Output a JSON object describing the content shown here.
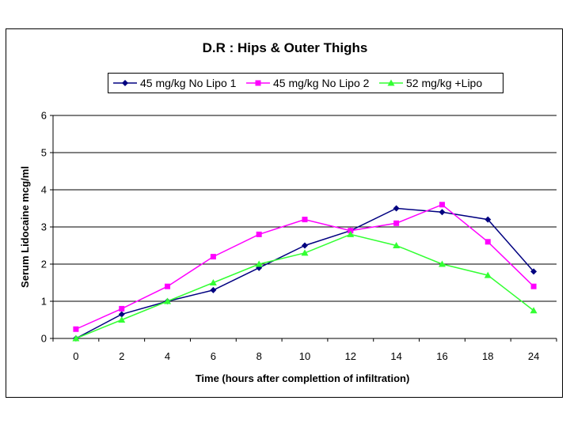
{
  "chart_data": {
    "type": "line",
    "title": "D.R :   Hips  & Outer Thighs",
    "xlabel": "Time (hours after complettion of infiltration)",
    "ylabel": "Serum Lidocaine mcg/ml",
    "categories": [
      "0",
      "2",
      "4",
      "6",
      "8",
      "10",
      "12",
      "14",
      "16",
      "18",
      "24"
    ],
    "ylim": [
      0,
      6
    ],
    "yticks": [
      0,
      1,
      2,
      3,
      4,
      5,
      6
    ],
    "grid": true,
    "legend_position": "top",
    "series": [
      {
        "name": "45 mg/kg No Lipo 1",
        "color": "#000080",
        "marker": "diamond",
        "values": [
          0,
          0.65,
          1.0,
          1.3,
          1.9,
          2.5,
          2.9,
          3.5,
          3.4,
          3.2,
          1.8
        ]
      },
      {
        "name": "45 mg/kg No Lipo 2",
        "color": "#FF00FF",
        "marker": "square",
        "values": [
          0.25,
          0.8,
          1.4,
          2.2,
          2.8,
          3.2,
          2.9,
          3.1,
          3.6,
          2.6,
          1.4
        ]
      },
      {
        "name": "52 mg/kg +Lipo",
        "color": "#33FF33",
        "marker": "triangle",
        "values": [
          0,
          0.5,
          1.0,
          1.5,
          2.0,
          2.3,
          2.8,
          2.5,
          2.0,
          1.7,
          0.75
        ]
      }
    ]
  }
}
